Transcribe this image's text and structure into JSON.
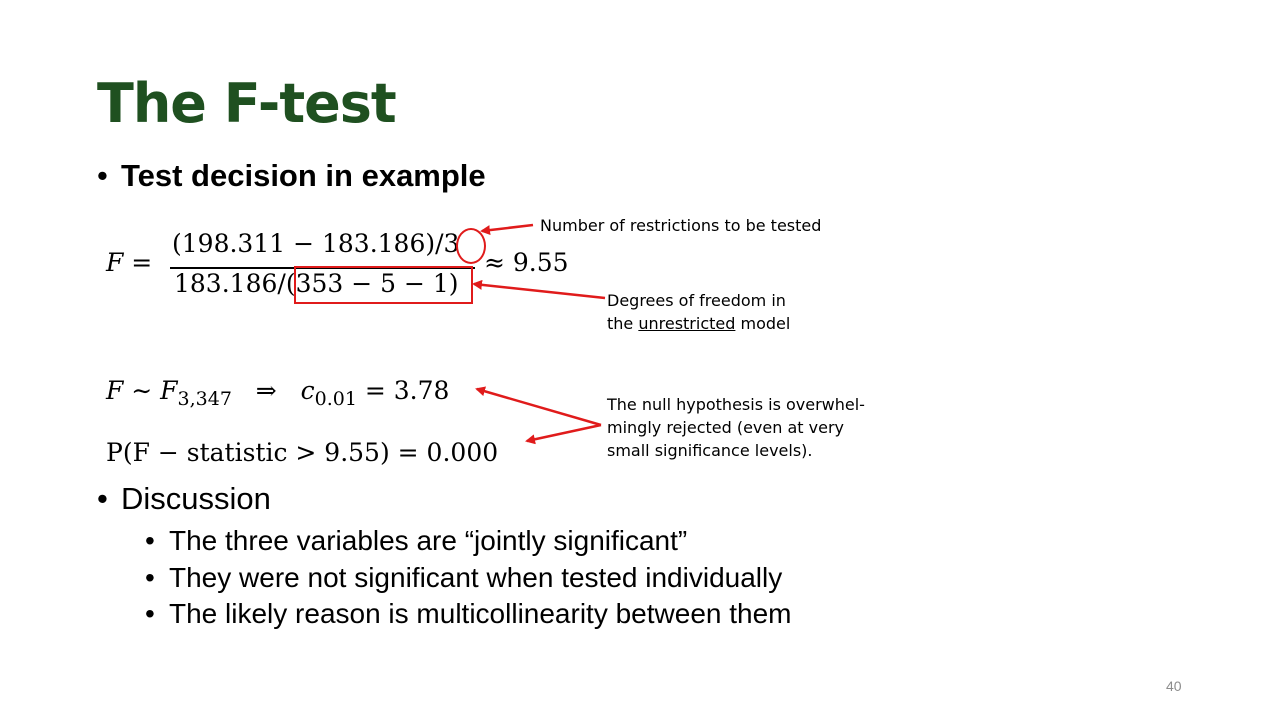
{
  "slide": {
    "title": "The F-test",
    "bullet1": "Test decision in example",
    "bullet2": "Discussion",
    "sub_bullets": [
      "The three variables are “jointly significant”",
      "They were not significant when tested individually",
      "The likely reason is multicollinearity between them"
    ],
    "page_number": "40"
  },
  "formula": {
    "F_lhs": "F =",
    "numerator": "(198.311 − 183.186)/3",
    "numerator_main": "(198.311 − 183.186)/",
    "numerator_restrictions": "3",
    "denominator_main": "183.186/",
    "denominator_df": "(353 − 5 − 1)",
    "approx_result": "≈ 9.55",
    "dist_line_lhs": "F ∼ F",
    "dist_sub": "3,347",
    "dist_implies": "⇒",
    "crit_c": "c",
    "crit_sub": "0.01",
    "crit_value": "= 3.78",
    "pvalue_line": "P(F − statistic > 9.55) = 0.000"
  },
  "annotations": {
    "restrictions": "Number of restrictions to be tested",
    "df_line1": "Degrees of freedom in",
    "df_line2_pre": "the ",
    "df_line2_underlined": "unrestricted",
    "df_line2_post": " model",
    "null_line1": "The null hypothesis is overwhel-",
    "null_line2": "mingly rejected (even at very",
    "null_line3": "small significance levels)."
  },
  "colors": {
    "title": "#1f5020",
    "annotation_red": "#e01b1b",
    "page_number": "#8c8c8c"
  }
}
